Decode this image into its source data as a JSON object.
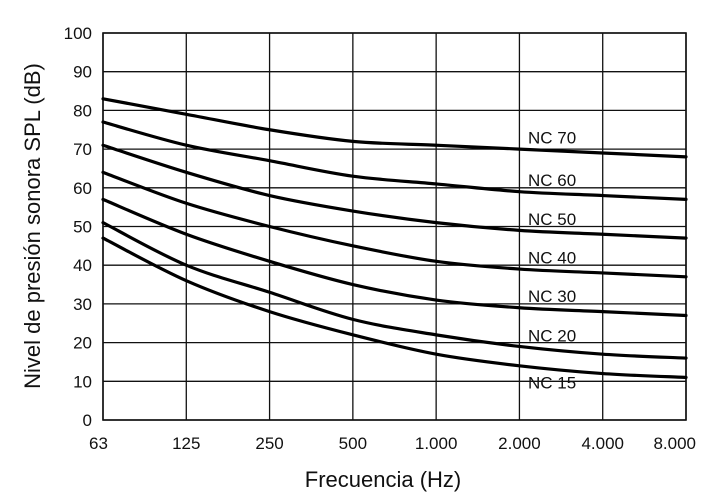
{
  "chart_data": {
    "type": "line",
    "xlabel": "Frecuencia  (Hz)",
    "ylabel": "Nivel de presión sonora SPL (dB)",
    "x_scale": "log2",
    "categories": [
      "63",
      "125",
      "250",
      "500",
      "1.000",
      "2.000",
      "4.000",
      "8.000"
    ],
    "x": [
      63,
      125,
      250,
      500,
      1000,
      2000,
      4000,
      8000
    ],
    "ylim": [
      0,
      100
    ],
    "yticks": [
      "0",
      "10",
      "20",
      "30",
      "40",
      "50",
      "60",
      "70",
      "80",
      "90",
      "100"
    ],
    "grid": true,
    "series": [
      {
        "name": "NC 70",
        "values": [
          83,
          79,
          75,
          72,
          71,
          70,
          69,
          68
        ]
      },
      {
        "name": "NC 60",
        "values": [
          77,
          71,
          67,
          63,
          61,
          59,
          58,
          57
        ]
      },
      {
        "name": "NC 50",
        "values": [
          71,
          64,
          58,
          54,
          51,
          49,
          48,
          47
        ]
      },
      {
        "name": "NC 40",
        "values": [
          64,
          56,
          50,
          45,
          41,
          39,
          38,
          37
        ]
      },
      {
        "name": "NC 30",
        "values": [
          57,
          48,
          41,
          35,
          31,
          29,
          28,
          27
        ]
      },
      {
        "name": "NC 20",
        "values": [
          51,
          40,
          33,
          26,
          22,
          19,
          17,
          16
        ]
      },
      {
        "name": "NC 15",
        "values": [
          47,
          36,
          28,
          22,
          17,
          14,
          12,
          11
        ]
      }
    ]
  }
}
